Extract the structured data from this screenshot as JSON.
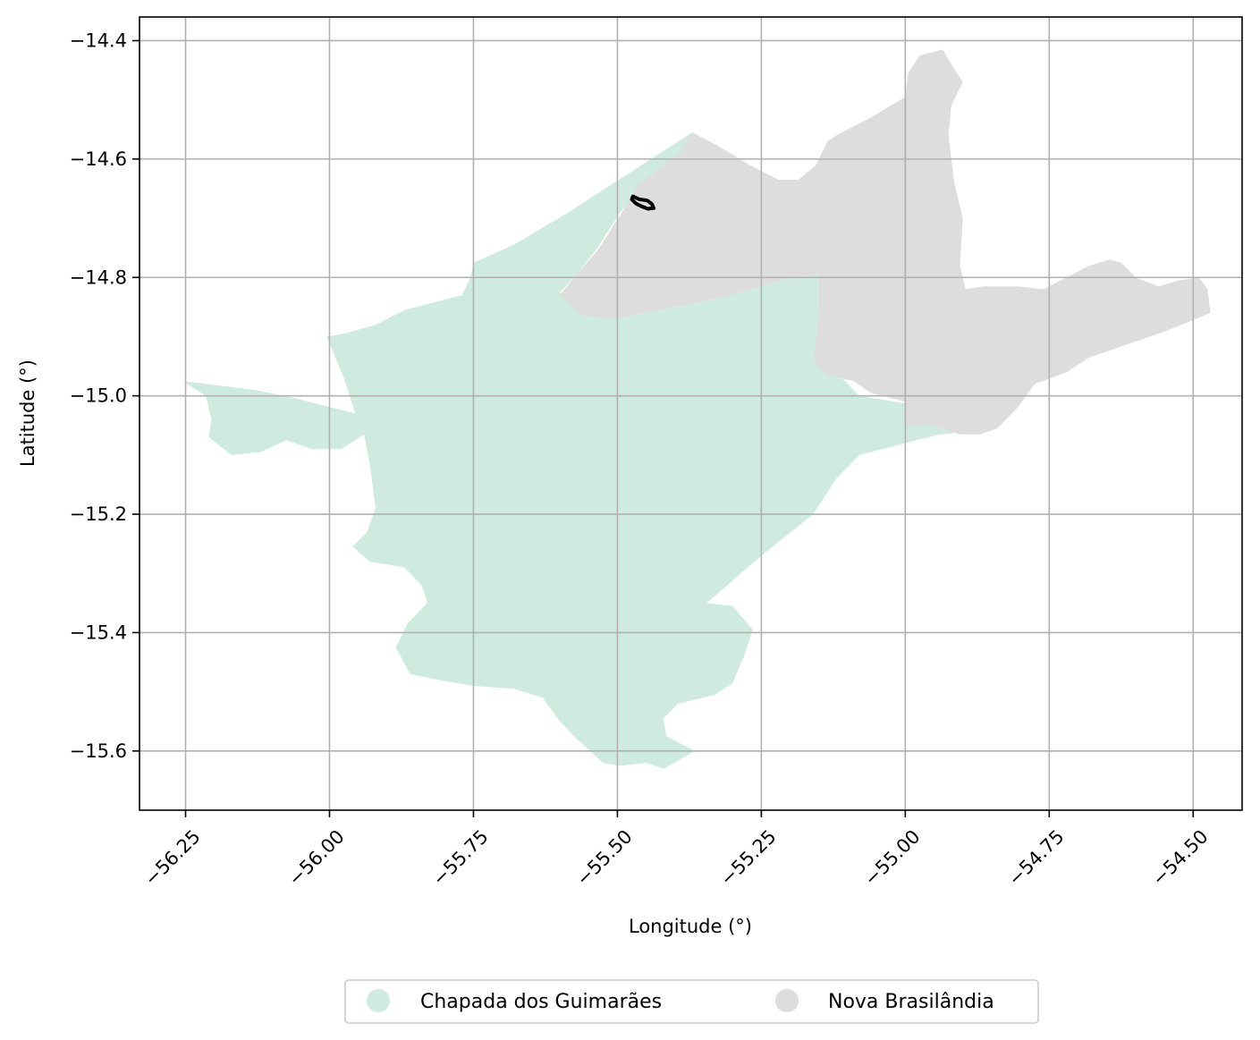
{
  "map": {
    "xlabel": "Longitude (°)",
    "ylabel": "Latitude (°)",
    "grid": true,
    "xlim": [
      -56.33,
      -54.415
    ],
    "ylim": [
      -15.7,
      -14.36
    ],
    "x_ticks": [
      -56.25,
      -56.0,
      -55.75,
      -55.5,
      -55.25,
      -55.0,
      -54.75,
      -54.5
    ],
    "x_tick_labels": [
      "−56.25",
      "−56.00",
      "−55.75",
      "−55.50",
      "−55.25",
      "−55.00",
      "−54.75",
      "−54.50"
    ],
    "y_ticks": [
      -14.4,
      -14.6,
      -14.8,
      -15.0,
      -15.2,
      -15.4,
      -15.6
    ],
    "y_tick_labels": [
      "−14.4",
      "−14.6",
      "−14.8",
      "−15.0",
      "−15.2",
      "−15.4",
      "−15.6"
    ],
    "colors": {
      "chapada": "#cfebdf",
      "nova": "#dddddd",
      "marker": "#000000",
      "grid": "#b0b0b0"
    },
    "regions": [
      {
        "name": "Chapada dos Guimarães",
        "color": "#cfebdf",
        "coords": [
          [
            -55.37,
            -14.555
          ],
          [
            -55.45,
            -14.605
          ],
          [
            -55.585,
            -14.69
          ],
          [
            -55.68,
            -14.745
          ],
          [
            -55.75,
            -14.775
          ],
          [
            -55.755,
            -14.8
          ],
          [
            -55.77,
            -14.83
          ],
          [
            -55.83,
            -14.845
          ],
          [
            -55.87,
            -14.855
          ],
          [
            -55.92,
            -14.88
          ],
          [
            -55.975,
            -14.895
          ],
          [
            -56.005,
            -14.9
          ],
          [
            -55.99,
            -14.935
          ],
          [
            -55.975,
            -14.97
          ],
          [
            -55.955,
            -15.03
          ],
          [
            -56.055,
            -15.005
          ],
          [
            -56.13,
            -14.99
          ],
          [
            -56.255,
            -14.975
          ],
          [
            -56.215,
            -15.0
          ],
          [
            -56.205,
            -15.04
          ],
          [
            -56.21,
            -15.07
          ],
          [
            -56.17,
            -15.1
          ],
          [
            -56.12,
            -15.095
          ],
          [
            -56.075,
            -15.075
          ],
          [
            -56.03,
            -15.09
          ],
          [
            -55.98,
            -15.09
          ],
          [
            -55.94,
            -15.065
          ],
          [
            -55.93,
            -15.115
          ],
          [
            -55.92,
            -15.19
          ],
          [
            -55.935,
            -15.23
          ],
          [
            -55.96,
            -15.255
          ],
          [
            -55.93,
            -15.28
          ],
          [
            -55.87,
            -15.29
          ],
          [
            -55.84,
            -15.32
          ],
          [
            -55.83,
            -15.35
          ],
          [
            -55.865,
            -15.385
          ],
          [
            -55.885,
            -15.425
          ],
          [
            -55.86,
            -15.47
          ],
          [
            -55.81,
            -15.48
          ],
          [
            -55.75,
            -15.49
          ],
          [
            -55.68,
            -15.495
          ],
          [
            -55.63,
            -15.51
          ],
          [
            -55.6,
            -15.55
          ],
          [
            -55.57,
            -15.58
          ],
          [
            -55.525,
            -15.62
          ],
          [
            -55.495,
            -15.625
          ],
          [
            -55.45,
            -15.62
          ],
          [
            -55.42,
            -15.63
          ],
          [
            -55.365,
            -15.6
          ],
          [
            -55.415,
            -15.575
          ],
          [
            -55.42,
            -15.545
          ],
          [
            -55.395,
            -15.52
          ],
          [
            -55.33,
            -15.505
          ],
          [
            -55.3,
            -15.485
          ],
          [
            -55.28,
            -15.44
          ],
          [
            -55.265,
            -15.395
          ],
          [
            -55.3,
            -15.355
          ],
          [
            -55.345,
            -15.35
          ],
          [
            -55.25,
            -15.27
          ],
          [
            -55.16,
            -15.2
          ],
          [
            -55.12,
            -15.14
          ],
          [
            -55.08,
            -15.1
          ],
          [
            -55.0,
            -15.08
          ],
          [
            -54.94,
            -15.065
          ],
          [
            -54.885,
            -15.06
          ],
          [
            -54.955,
            -15.02
          ],
          [
            -55.08,
            -15.0
          ],
          [
            -55.115,
            -14.965
          ],
          [
            -55.135,
            -14.93
          ],
          [
            -55.15,
            -14.86
          ],
          [
            -55.15,
            -14.795
          ],
          [
            -55.2,
            -14.8
          ],
          [
            -55.25,
            -14.815
          ],
          [
            -55.3,
            -14.83
          ],
          [
            -55.37,
            -14.845
          ],
          [
            -55.43,
            -14.855
          ],
          [
            -55.5,
            -14.87
          ],
          [
            -55.6,
            -14.825
          ],
          [
            -55.57,
            -14.795
          ],
          [
            -55.535,
            -14.75
          ],
          [
            -55.495,
            -14.69
          ],
          [
            -55.47,
            -14.66
          ],
          [
            -55.43,
            -14.625
          ],
          [
            -55.39,
            -14.59
          ]
        ]
      },
      {
        "name": "Nova Brasilândia",
        "color": "#dddddd",
        "coords": [
          [
            -55.37,
            -14.555
          ],
          [
            -55.33,
            -14.575
          ],
          [
            -55.27,
            -14.61
          ],
          [
            -55.22,
            -14.635
          ],
          [
            -55.185,
            -14.635
          ],
          [
            -55.155,
            -14.61
          ],
          [
            -55.135,
            -14.57
          ],
          [
            -55.12,
            -14.56
          ],
          [
            -55.06,
            -14.53
          ],
          [
            -55.0,
            -14.495
          ],
          [
            -54.995,
            -14.455
          ],
          [
            -54.975,
            -14.425
          ],
          [
            -54.935,
            -14.415
          ],
          [
            -54.92,
            -14.44
          ],
          [
            -54.9,
            -14.47
          ],
          [
            -54.92,
            -14.51
          ],
          [
            -54.925,
            -14.56
          ],
          [
            -54.915,
            -14.64
          ],
          [
            -54.9,
            -14.7
          ],
          [
            -54.905,
            -14.78
          ],
          [
            -54.895,
            -14.82
          ],
          [
            -54.865,
            -14.815
          ],
          [
            -54.805,
            -14.815
          ],
          [
            -54.76,
            -14.82
          ],
          [
            -54.72,
            -14.8
          ],
          [
            -54.68,
            -14.78
          ],
          [
            -54.645,
            -14.77
          ],
          [
            -54.625,
            -14.775
          ],
          [
            -54.6,
            -14.8
          ],
          [
            -54.56,
            -14.815
          ],
          [
            -54.525,
            -14.805
          ],
          [
            -54.49,
            -14.8
          ],
          [
            -54.475,
            -14.82
          ],
          [
            -54.47,
            -14.86
          ],
          [
            -54.545,
            -14.89
          ],
          [
            -54.62,
            -14.915
          ],
          [
            -54.68,
            -14.935
          ],
          [
            -54.72,
            -14.96
          ],
          [
            -54.775,
            -14.98
          ],
          [
            -54.805,
            -15.02
          ],
          [
            -54.84,
            -15.055
          ],
          [
            -54.87,
            -15.065
          ],
          [
            -54.905,
            -15.065
          ],
          [
            -54.95,
            -15.05
          ],
          [
            -55.0,
            -15.05
          ],
          [
            -55.0,
            -15.01
          ],
          [
            -55.06,
            -14.995
          ],
          [
            -55.09,
            -14.975
          ],
          [
            -55.135,
            -14.965
          ],
          [
            -55.16,
            -14.94
          ],
          [
            -55.15,
            -14.86
          ],
          [
            -55.15,
            -14.795
          ],
          [
            -55.2,
            -14.8
          ],
          [
            -55.25,
            -14.815
          ],
          [
            -55.3,
            -14.83
          ],
          [
            -55.37,
            -14.845
          ],
          [
            -55.43,
            -14.855
          ],
          [
            -55.5,
            -14.87
          ],
          [
            -55.56,
            -14.865
          ],
          [
            -55.6,
            -14.83
          ],
          [
            -55.575,
            -14.8
          ],
          [
            -55.535,
            -14.755
          ],
          [
            -55.495,
            -14.695
          ],
          [
            -55.465,
            -14.645
          ],
          [
            -55.42,
            -14.61
          ],
          [
            -55.39,
            -14.59
          ],
          [
            -55.38,
            -14.57
          ]
        ]
      }
    ],
    "marker": {
      "color": "#000000",
      "coords": [
        [
          -55.473,
          -14.663
        ],
        [
          -55.462,
          -14.668
        ],
        [
          -55.448,
          -14.67
        ],
        [
          -55.44,
          -14.676
        ],
        [
          -55.437,
          -14.683
        ],
        [
          -55.447,
          -14.684
        ],
        [
          -55.458,
          -14.68
        ],
        [
          -55.468,
          -14.675
        ],
        [
          -55.475,
          -14.668
        ]
      ]
    }
  },
  "legend": {
    "items": [
      {
        "label": "Chapada dos Guimarães",
        "color": "#cfebdf"
      },
      {
        "label": "Nova Brasilândia",
        "color": "#dddddd"
      }
    ]
  }
}
